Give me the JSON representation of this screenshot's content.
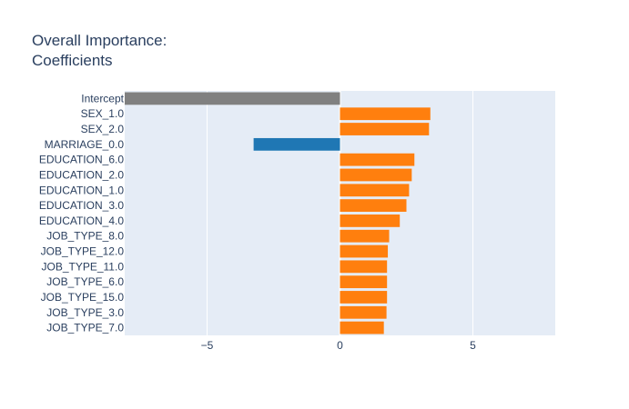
{
  "title_lines": [
    "Overall Importance:",
    "Coefficients"
  ],
  "chart_data": {
    "type": "bar",
    "orientation": "horizontal",
    "title": "Overall Importance: Coefficients",
    "categories": [
      "Intercept",
      "SEX_1.0",
      "SEX_2.0",
      "MARRIAGE_0.0",
      "EDUCATION_6.0",
      "EDUCATION_2.0",
      "EDUCATION_1.0",
      "EDUCATION_3.0",
      "EDUCATION_4.0",
      "JOB_TYPE_8.0",
      "JOB_TYPE_12.0",
      "JOB_TYPE_11.0",
      "JOB_TYPE_6.0",
      "JOB_TYPE_15.0",
      "JOB_TYPE_3.0",
      "JOB_TYPE_7.0"
    ],
    "values": [
      -8.1,
      3.4,
      3.35,
      -3.25,
      2.8,
      2.7,
      2.6,
      2.5,
      2.25,
      1.85,
      1.8,
      1.77,
      1.77,
      1.77,
      1.75,
      1.65
    ],
    "colors": [
      "#808080",
      "#ff7f0e",
      "#ff7f0e",
      "#1f77b4",
      "#ff7f0e",
      "#ff7f0e",
      "#ff7f0e",
      "#ff7f0e",
      "#ff7f0e",
      "#ff7f0e",
      "#ff7f0e",
      "#ff7f0e",
      "#ff7f0e",
      "#ff7f0e",
      "#ff7f0e",
      "#ff7f0e"
    ],
    "xlim": [
      -8.1,
      8.1
    ],
    "xticks": [
      -5,
      0,
      5
    ],
    "xtick_labels": [
      "−5",
      "0",
      "5"
    ],
    "grid": true,
    "plot_background": "#e5ecf6",
    "text_color": "#2a3f5f"
  }
}
